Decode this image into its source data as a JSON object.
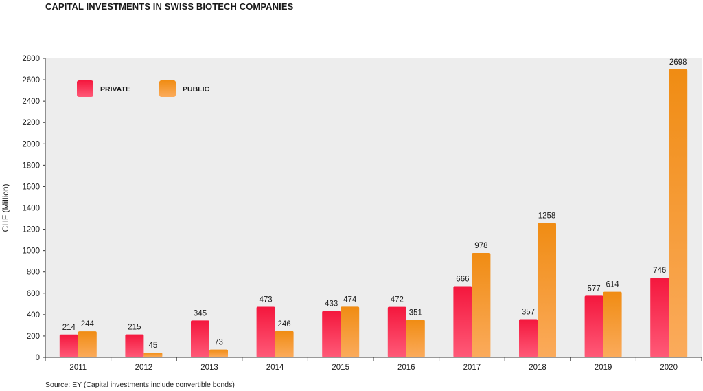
{
  "title": "CAPITAL INVESTMENTS IN SWISS BIOTECH COMPANIES",
  "source": "Source: EY (Capital investments include convertible bonds)",
  "colors": {
    "private_top": "#f4173d",
    "private_bottom": "#ff5a78",
    "public_top": "#f08c13",
    "public_bottom": "#fbab5c",
    "plot_bg": "#ededed",
    "axis": "#333333"
  },
  "chart_data": {
    "type": "bar",
    "title": "CAPITAL INVESTMENTS IN SWISS BIOTECH COMPANIES",
    "xlabel": "",
    "ylabel": "CHF (Million)",
    "ylim": [
      0,
      2800
    ],
    "yticks": [
      0,
      200,
      400,
      600,
      800,
      1000,
      1200,
      1400,
      1600,
      1800,
      2000,
      2200,
      2400,
      2600,
      2800
    ],
    "grid": false,
    "legend_position": "top-left",
    "categories": [
      "2011",
      "2012",
      "2013",
      "2014",
      "2015",
      "2016",
      "2017",
      "2018",
      "2019",
      "2020"
    ],
    "series": [
      {
        "name": "PRIVATE",
        "values": [
          214,
          215,
          345,
          473,
          433,
          472,
          666,
          357,
          577,
          746
        ]
      },
      {
        "name": "PUBLIC",
        "values": [
          244,
          45,
          73,
          246,
          474,
          351,
          978,
          1258,
          614,
          2698
        ]
      }
    ]
  }
}
